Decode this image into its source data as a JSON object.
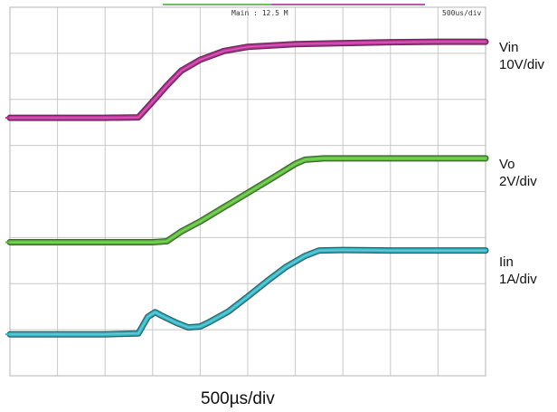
{
  "header": {
    "main_readout": "Main : 12.5 M",
    "timebase": "500us/div"
  },
  "footer": {
    "timebase_label": "500µs/div"
  },
  "colors": {
    "vin": "#c0309c",
    "vo": "#5cc038",
    "iin": "#33b9c9",
    "grid": "#c8c8c8"
  },
  "chart_data": {
    "type": "line",
    "x_unit": "divisions",
    "x_range": [
      0,
      10
    ],
    "y_unit": "screen divisions",
    "y_range": [
      0,
      8
    ],
    "grid": true,
    "labels": [
      {
        "series": "Vin",
        "name": "Vin",
        "scale": "10V/div"
      },
      {
        "series": "Vo",
        "name": "Vo",
        "scale": "2V/div"
      },
      {
        "series": "Iin",
        "name": "Iin",
        "scale": "1A/div"
      }
    ],
    "series": [
      {
        "name": "Vin",
        "color": "#c0309c",
        "x": [
          0.0,
          1.0,
          2.0,
          2.7,
          3.0,
          3.3,
          3.6,
          4.0,
          4.5,
          5.0,
          6.0,
          7.0,
          8.0,
          9.0,
          10.0
        ],
        "y": [
          5.6,
          5.6,
          5.6,
          5.61,
          5.95,
          6.3,
          6.62,
          6.86,
          7.05,
          7.14,
          7.2,
          7.22,
          7.24,
          7.25,
          7.25
        ]
      },
      {
        "name": "Vo",
        "color": "#5cc038",
        "x": [
          0.0,
          1.0,
          2.0,
          3.0,
          3.3,
          3.6,
          4.0,
          4.5,
          5.0,
          5.5,
          6.0,
          6.2,
          6.6,
          7.0,
          8.0,
          9.0,
          10.0
        ],
        "y": [
          2.9,
          2.9,
          2.9,
          2.9,
          2.92,
          3.13,
          3.35,
          3.66,
          3.97,
          4.28,
          4.6,
          4.69,
          4.72,
          4.72,
          4.72,
          4.72,
          4.72
        ]
      },
      {
        "name": "Iin",
        "color": "#33b9c9",
        "x": [
          0.0,
          1.0,
          2.0,
          2.7,
          2.9,
          3.05,
          3.2,
          3.5,
          3.75,
          4.0,
          4.2,
          4.6,
          5.0,
          5.4,
          5.8,
          6.2,
          6.5,
          7.0,
          8.0,
          9.0,
          10.0
        ],
        "y": [
          0.9,
          0.9,
          0.9,
          0.92,
          1.28,
          1.38,
          1.3,
          1.15,
          1.05,
          1.07,
          1.17,
          1.4,
          1.72,
          2.05,
          2.36,
          2.6,
          2.72,
          2.73,
          2.72,
          2.72,
          2.72
        ]
      }
    ]
  }
}
